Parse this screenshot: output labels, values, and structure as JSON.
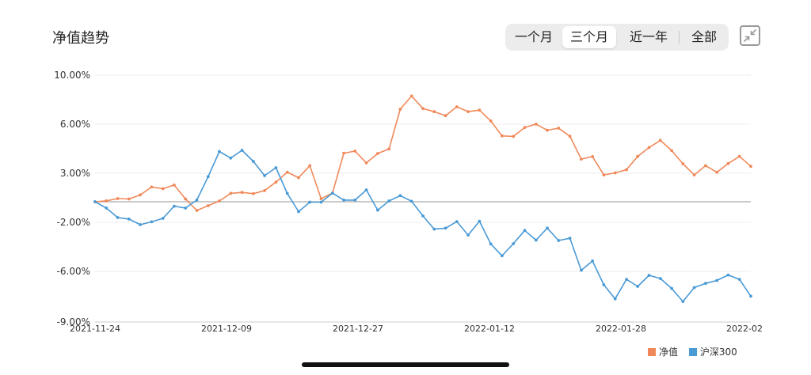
{
  "header": {
    "title": "净值趋势"
  },
  "range_tabs": [
    {
      "label": "一个月",
      "active": false
    },
    {
      "label": "三个月",
      "active": true
    },
    {
      "label": "近一年",
      "active": false
    },
    {
      "label": "全部",
      "active": false
    }
  ],
  "expand_icon": "collapse-arrows-icon",
  "colors": {
    "nav": "#f0895a",
    "index": "#4a9ad6",
    "grid": "#ececec",
    "baseline": "#b8b8b8"
  },
  "chart_data": {
    "type": "line",
    "y_tick_labels": [
      "10.00%",
      "6.00%",
      "3.00%",
      "-2.00%",
      "-6.00%",
      "-9.00%"
    ],
    "x_tick_labels": [
      "2021-11-24",
      "2021-12-09",
      "2021-12-27",
      "2022-01-12",
      "2022-01-28",
      "2022-02"
    ],
    "legend": [
      {
        "name": "净值",
        "color": "#f0895a"
      },
      {
        "name": "沪深300",
        "color": "#4a9ad6"
      }
    ],
    "ylim": [
      -9,
      10
    ],
    "grid": true,
    "legend_position": "bottom-right",
    "series": [
      {
        "name": "净值",
        "values": [
          0.0,
          0.07,
          0.25,
          0.22,
          0.54,
          1.16,
          1.03,
          1.32,
          0.22,
          -0.69,
          -0.31,
          0.06,
          0.66,
          0.74,
          0.64,
          0.88,
          1.55,
          2.34,
          1.9,
          2.85,
          0.24,
          0.69,
          3.84,
          4.0,
          3.07,
          3.81,
          4.17,
          7.31,
          8.35,
          7.37,
          7.11,
          6.8,
          7.5,
          7.12,
          7.24,
          6.38,
          5.2,
          5.16,
          5.87,
          6.13,
          5.65,
          5.81,
          5.17,
          3.37,
          3.57,
          2.12,
          2.28,
          2.53,
          3.58,
          4.28,
          4.85,
          4.04,
          3.0,
          2.12,
          2.85,
          2.33,
          3.02,
          3.58,
          2.8
        ]
      },
      {
        "name": "沪深300",
        "values": [
          0.0,
          -0.5,
          -1.25,
          -1.37,
          -1.81,
          -1.59,
          -1.31,
          -0.35,
          -0.5,
          0.13,
          1.98,
          3.97,
          3.45,
          4.06,
          3.19,
          2.06,
          2.69,
          0.66,
          -0.78,
          -0.03,
          -0.03,
          0.68,
          0.13,
          0.13,
          0.93,
          -0.66,
          0.06,
          0.48,
          0.04,
          -1.12,
          -2.16,
          -2.09,
          -1.57,
          -2.63,
          -1.54,
          -3.34,
          -4.27,
          -3.31,
          -2.27,
          -3.03,
          -2.08,
          -3.06,
          -2.88,
          -5.41,
          -4.68,
          -6.56,
          -7.67,
          -6.13,
          -6.69,
          -5.81,
          -6.06,
          -6.85,
          -7.88,
          -6.78,
          -6.45,
          -6.22,
          -5.79,
          -6.13,
          -7.46
        ]
      }
    ]
  },
  "home_indicator": "home-indicator-bar"
}
